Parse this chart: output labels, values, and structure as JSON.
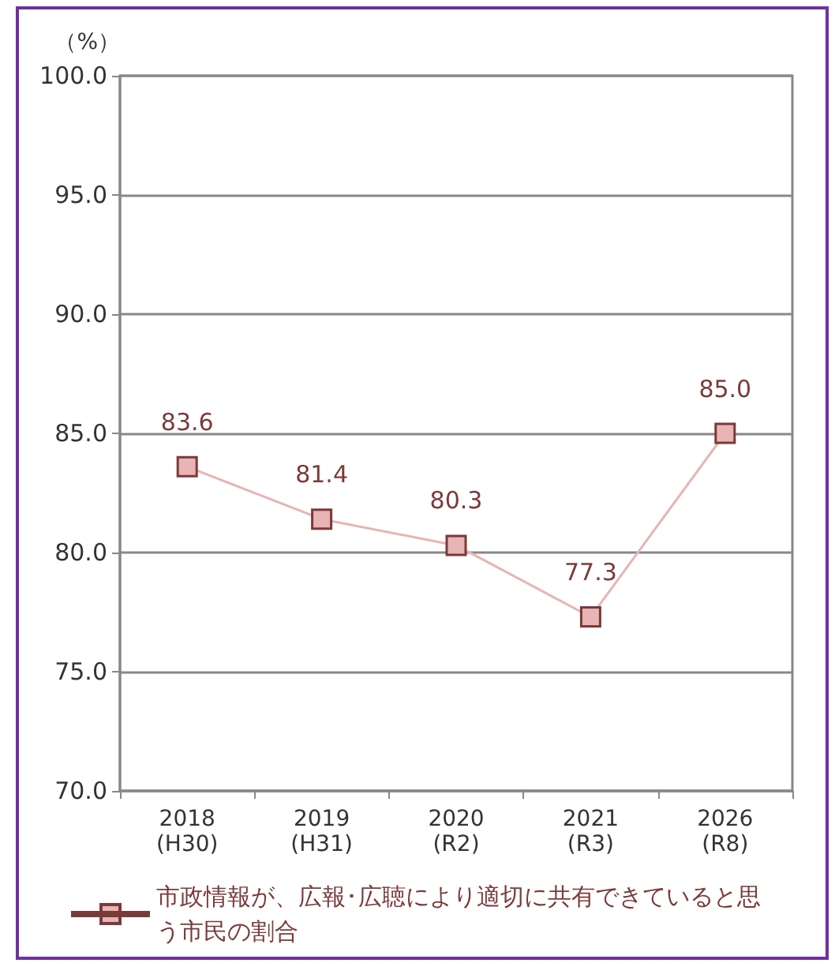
{
  "chart_data": {
    "type": "line",
    "ylabel": "（%）",
    "categories": [
      "2018\n(H30)",
      "2019\n(H31)",
      "2020\n(R2)",
      "2021\n(R3)",
      "2026\n(R8)"
    ],
    "series": [
      {
        "name": "市政情報が、広報･広聴により適切に共有できていると思う市民の割合",
        "color": "#e8b4b4",
        "values": [
          83.6,
          81.4,
          80.3,
          77.3,
          85.0
        ],
        "value_labels": [
          "83.6",
          "81.4",
          "80.3",
          "77.3",
          "85.0"
        ]
      }
    ],
    "ylim": [
      70,
      100
    ],
    "yticks": [
      {
        "value": 70,
        "label": "70.0"
      },
      {
        "value": 75,
        "label": "75.0"
      },
      {
        "value": 80,
        "label": "80.0"
      },
      {
        "value": 85,
        "label": "85.0"
      },
      {
        "value": 90,
        "label": "90.0"
      },
      {
        "value": 95,
        "label": "95.0"
      },
      {
        "value": 100,
        "label": "100.0"
      }
    ],
    "grid": "y",
    "legend": "bottom",
    "marker": "square",
    "line_style": "solid"
  }
}
